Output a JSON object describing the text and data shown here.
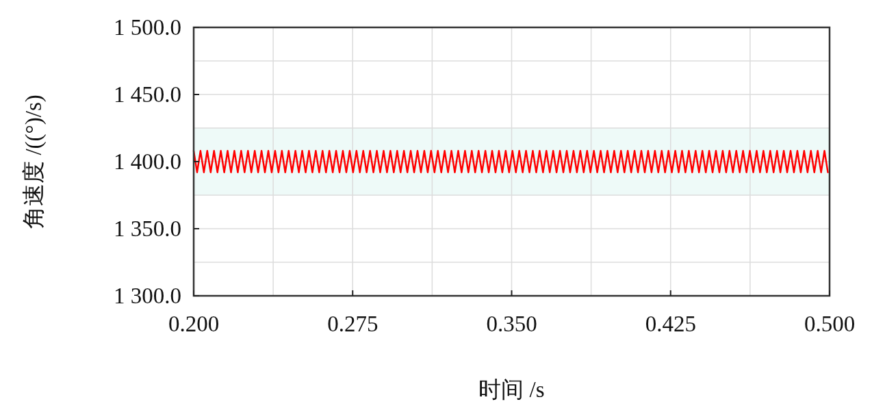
{
  "chart_data": {
    "type": "line",
    "xlabel": "时间 /s",
    "ylabel": "角速度 /((°)/s)",
    "xlim": [
      0.2,
      0.5
    ],
    "ylim": [
      1300,
      1500
    ],
    "xticks": [
      {
        "value": 0.2,
        "label": "0.200"
      },
      {
        "value": 0.2375,
        "label": null
      },
      {
        "value": 0.275,
        "label": "0.275"
      },
      {
        "value": 0.3125,
        "label": null
      },
      {
        "value": 0.35,
        "label": "0.350"
      },
      {
        "value": 0.3875,
        "label": null
      },
      {
        "value": 0.425,
        "label": "0.425"
      },
      {
        "value": 0.4625,
        "label": null
      },
      {
        "value": 0.5,
        "label": "0.500"
      }
    ],
    "yticks": [
      {
        "value": 1300,
        "label": "1 300.0"
      },
      {
        "value": 1325,
        "label": null
      },
      {
        "value": 1350,
        "label": "1 350.0"
      },
      {
        "value": 1375,
        "label": null
      },
      {
        "value": 1400,
        "label": "1 400.0"
      },
      {
        "value": 1425,
        "label": null
      },
      {
        "value": 1450,
        "label": "1 450.0"
      },
      {
        "value": 1475,
        "label": null
      },
      {
        "value": 1500,
        "label": "1 500.0"
      }
    ],
    "grid": true,
    "bands": [
      {
        "axis": "y",
        "from": 1375,
        "to": 1425,
        "color": "#eefaf8"
      }
    ],
    "series": [
      {
        "color": "#ff0000",
        "x": [
          0.2,
          0.2016,
          0.2032,
          0.2048,
          0.2064,
          0.208,
          0.2096,
          0.2112,
          0.2128,
          0.2144,
          0.216,
          0.2176,
          0.2192,
          0.2208,
          0.2224,
          0.224,
          0.2256,
          0.2272,
          0.2288,
          0.2304,
          0.232,
          0.2336,
          0.2352,
          0.2368,
          0.2384,
          0.24,
          0.2416,
          0.2432,
          0.2448,
          0.2464,
          0.248,
          0.2496,
          0.2512,
          0.2528,
          0.2544,
          0.256,
          0.2576,
          0.2592,
          0.2608,
          0.2624,
          0.264,
          0.2656,
          0.2672,
          0.2688,
          0.2704,
          0.272,
          0.2736,
          0.2752,
          0.2768,
          0.2784,
          0.28,
          0.2816,
          0.2832,
          0.2848,
          0.2864,
          0.288,
          0.2896,
          0.2912,
          0.2928,
          0.2944,
          0.296,
          0.2976,
          0.2992,
          0.3008,
          0.3024,
          0.304,
          0.3056,
          0.3072,
          0.3088,
          0.3104,
          0.312,
          0.3136,
          0.3152,
          0.3168,
          0.3184,
          0.32,
          0.3216,
          0.3232,
          0.3248,
          0.3264,
          0.328,
          0.3296,
          0.3312,
          0.3328,
          0.3344,
          0.336,
          0.3376,
          0.3392,
          0.3408,
          0.3424,
          0.344,
          0.3456,
          0.3472,
          0.3488,
          0.3504,
          0.352,
          0.3536,
          0.3552,
          0.3568,
          0.3584,
          0.36,
          0.3616,
          0.3632,
          0.3648,
          0.3664,
          0.368,
          0.3696,
          0.3712,
          0.3728,
          0.3744,
          0.376,
          0.3776,
          0.3792,
          0.3808,
          0.3824,
          0.384,
          0.3856,
          0.3872,
          0.3888,
          0.3904,
          0.392,
          0.3936,
          0.3952,
          0.3968,
          0.3984,
          0.4,
          0.4016,
          0.4032,
          0.4048,
          0.4064,
          0.408,
          0.4096,
          0.4112,
          0.4128,
          0.4144,
          0.416,
          0.4176,
          0.4192,
          0.4208,
          0.4224,
          0.424,
          0.4256,
          0.4272,
          0.4288,
          0.4304,
          0.432,
          0.4336,
          0.4352,
          0.4368,
          0.4384,
          0.44,
          0.4416,
          0.4432,
          0.4448,
          0.4464,
          0.448,
          0.4496,
          0.4512,
          0.4528,
          0.4544,
          0.456,
          0.4576,
          0.4592,
          0.4608,
          0.4624,
          0.464,
          0.4656,
          0.4672,
          0.4688,
          0.4704,
          0.472,
          0.4736,
          0.4752,
          0.4768,
          0.4784,
          0.48,
          0.4816,
          0.4832,
          0.4848,
          0.4864,
          0.488,
          0.4896,
          0.4912,
          0.4928,
          0.4944,
          0.496,
          0.4976,
          0.4992
        ],
        "values": [
          1408,
          1392,
          1408,
          1392,
          1408,
          1392,
          1408,
          1392,
          1408,
          1392,
          1408,
          1392,
          1408,
          1392,
          1408,
          1392,
          1408,
          1392,
          1408,
          1392,
          1408,
          1392,
          1408,
          1392,
          1408,
          1392,
          1408,
          1392,
          1408,
          1392,
          1408,
          1392,
          1408,
          1392,
          1408,
          1392,
          1408,
          1392,
          1408,
          1392,
          1408,
          1392,
          1408,
          1392,
          1408,
          1392,
          1408,
          1392,
          1408,
          1392,
          1408,
          1392,
          1408,
          1392,
          1408,
          1392,
          1408,
          1392,
          1408,
          1392,
          1408,
          1392,
          1408,
          1392,
          1408,
          1392,
          1408,
          1392,
          1408,
          1392,
          1408,
          1392,
          1408,
          1392,
          1408,
          1392,
          1408,
          1392,
          1408,
          1392,
          1408,
          1392,
          1408,
          1392,
          1408,
          1392,
          1408,
          1392,
          1408,
          1392,
          1408,
          1392,
          1408,
          1392,
          1408,
          1392,
          1408,
          1392,
          1408,
          1392,
          1408,
          1392,
          1408,
          1392,
          1408,
          1392,
          1408,
          1392,
          1408,
          1392,
          1408,
          1392,
          1408,
          1392,
          1408,
          1392,
          1408,
          1392,
          1408,
          1392,
          1408,
          1392,
          1408,
          1392,
          1408,
          1392,
          1408,
          1392,
          1408,
          1392,
          1408,
          1392,
          1408,
          1392,
          1408,
          1392,
          1408,
          1392,
          1408,
          1392,
          1408,
          1392,
          1408,
          1392,
          1408,
          1392,
          1408,
          1392,
          1408,
          1392,
          1408,
          1392,
          1408,
          1392,
          1408,
          1392,
          1408,
          1392,
          1408,
          1392,
          1408,
          1392,
          1408,
          1392,
          1408,
          1392,
          1408,
          1392,
          1408,
          1392,
          1408,
          1392,
          1408,
          1392,
          1408,
          1392,
          1408,
          1392,
          1408,
          1392,
          1408,
          1392,
          1408,
          1392,
          1408,
          1392,
          1408,
          1392
        ]
      }
    ]
  }
}
